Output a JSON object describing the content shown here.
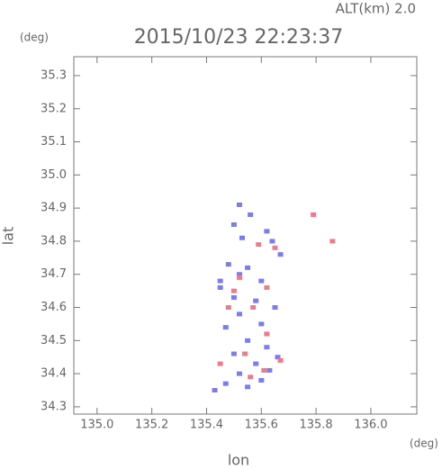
{
  "chart_data": {
    "type": "scatter",
    "title": "2015/10/23 22:23:37",
    "subtitle": "ALT(km) 2.0",
    "x_label": "lon",
    "y_label": "lat",
    "x_unit": "(deg)",
    "y_unit": "(deg)",
    "xlim": [
      134.915,
      136.168
    ],
    "ylim": [
      34.278,
      35.357
    ],
    "xticks": [
      {
        "value": 135,
        "label": "135.0"
      },
      135.2,
      135.4,
      135.6,
      135.8,
      {
        "value": 136,
        "label": "136.0"
      }
    ],
    "yticks": [
      34.3,
      34.4,
      34.5,
      34.6,
      34.7,
      34.8,
      34.9,
      {
        "value": 35,
        "label": "35.0"
      },
      35.1,
      35.2,
      35.3
    ],
    "series": [
      {
        "color": "#7a7cf0",
        "x": [
          135.52,
          135.56,
          135.5,
          135.53,
          135.64,
          135.67,
          135.62,
          135.48,
          135.52,
          135.55,
          135.6,
          135.45,
          135.5,
          135.58,
          135.65,
          135.52,
          135.6,
          135.47,
          135.55,
          135.62,
          135.5,
          135.58,
          135.66,
          135.52,
          135.6,
          135.47,
          135.43,
          135.55,
          135.63,
          135.45
        ],
        "values": [
          34.91,
          34.88,
          34.85,
          34.81,
          34.8,
          34.76,
          34.83,
          34.73,
          34.7,
          34.72,
          34.68,
          34.66,
          34.63,
          34.62,
          34.6,
          34.58,
          34.55,
          34.54,
          34.5,
          34.48,
          34.46,
          34.43,
          34.45,
          34.4,
          34.38,
          34.37,
          34.35,
          34.36,
          34.41,
          34.68
        ]
      },
      {
        "color": "#f07a8c",
        "x": [
          135.79,
          135.86,
          135.59,
          135.65,
          135.52,
          135.62,
          135.57,
          135.48,
          135.62,
          135.54,
          135.45,
          135.61,
          135.56,
          135.5,
          135.67
        ],
        "values": [
          34.88,
          34.8,
          34.79,
          34.78,
          34.69,
          34.66,
          34.6,
          34.6,
          34.52,
          34.46,
          34.43,
          34.41,
          34.39,
          34.65,
          34.44
        ]
      }
    ]
  }
}
